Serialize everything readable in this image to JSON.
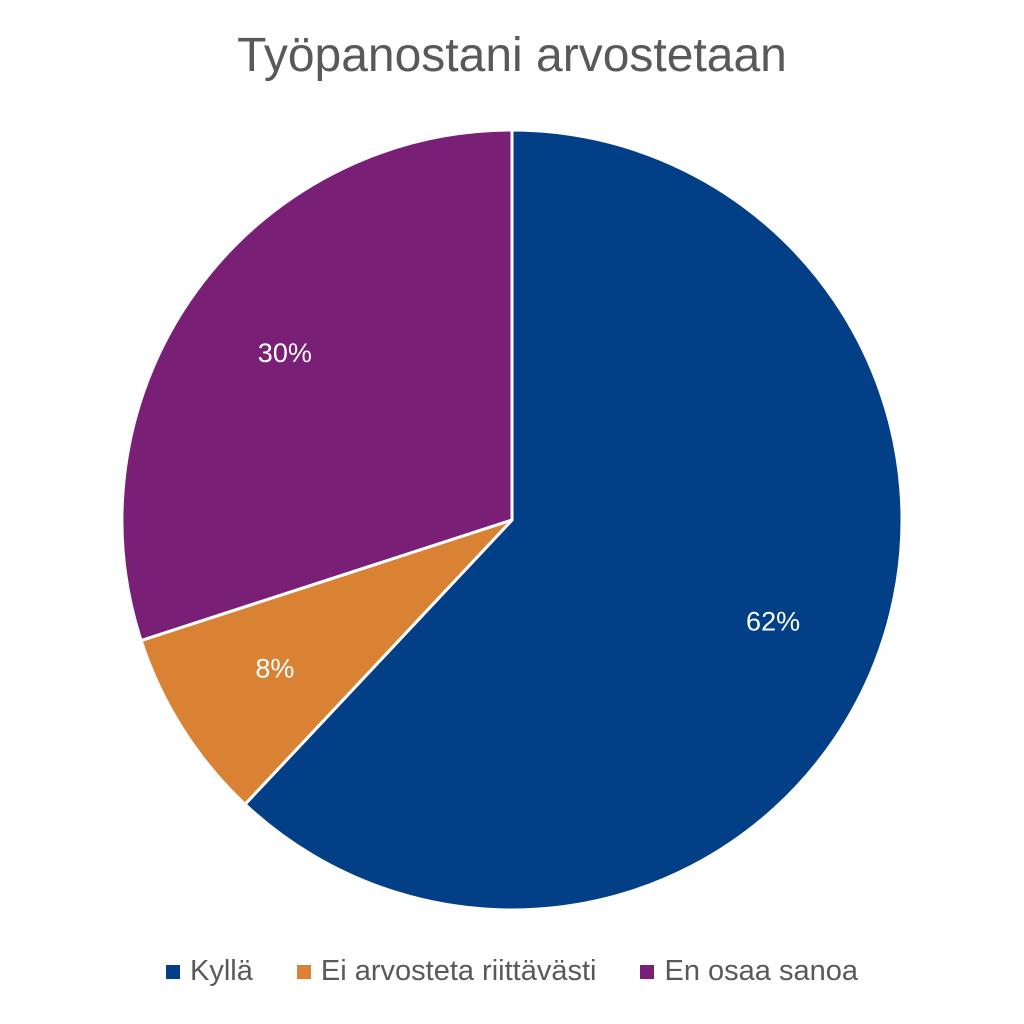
{
  "chart_data": {
    "type": "pie",
    "title": "Työpanostani arvostetaan",
    "categories": [
      "Kyllä",
      "Ei arvosteta riittävästi",
      "En osaa sanoa"
    ],
    "values": [
      62,
      8,
      30
    ],
    "data_labels": [
      "62%",
      "8%",
      "30%"
    ],
    "colors": [
      "#033F87",
      "#D98234",
      "#7A1F76"
    ],
    "legend_position": "bottom",
    "start_angle": "12 o'clock, clockwise"
  }
}
